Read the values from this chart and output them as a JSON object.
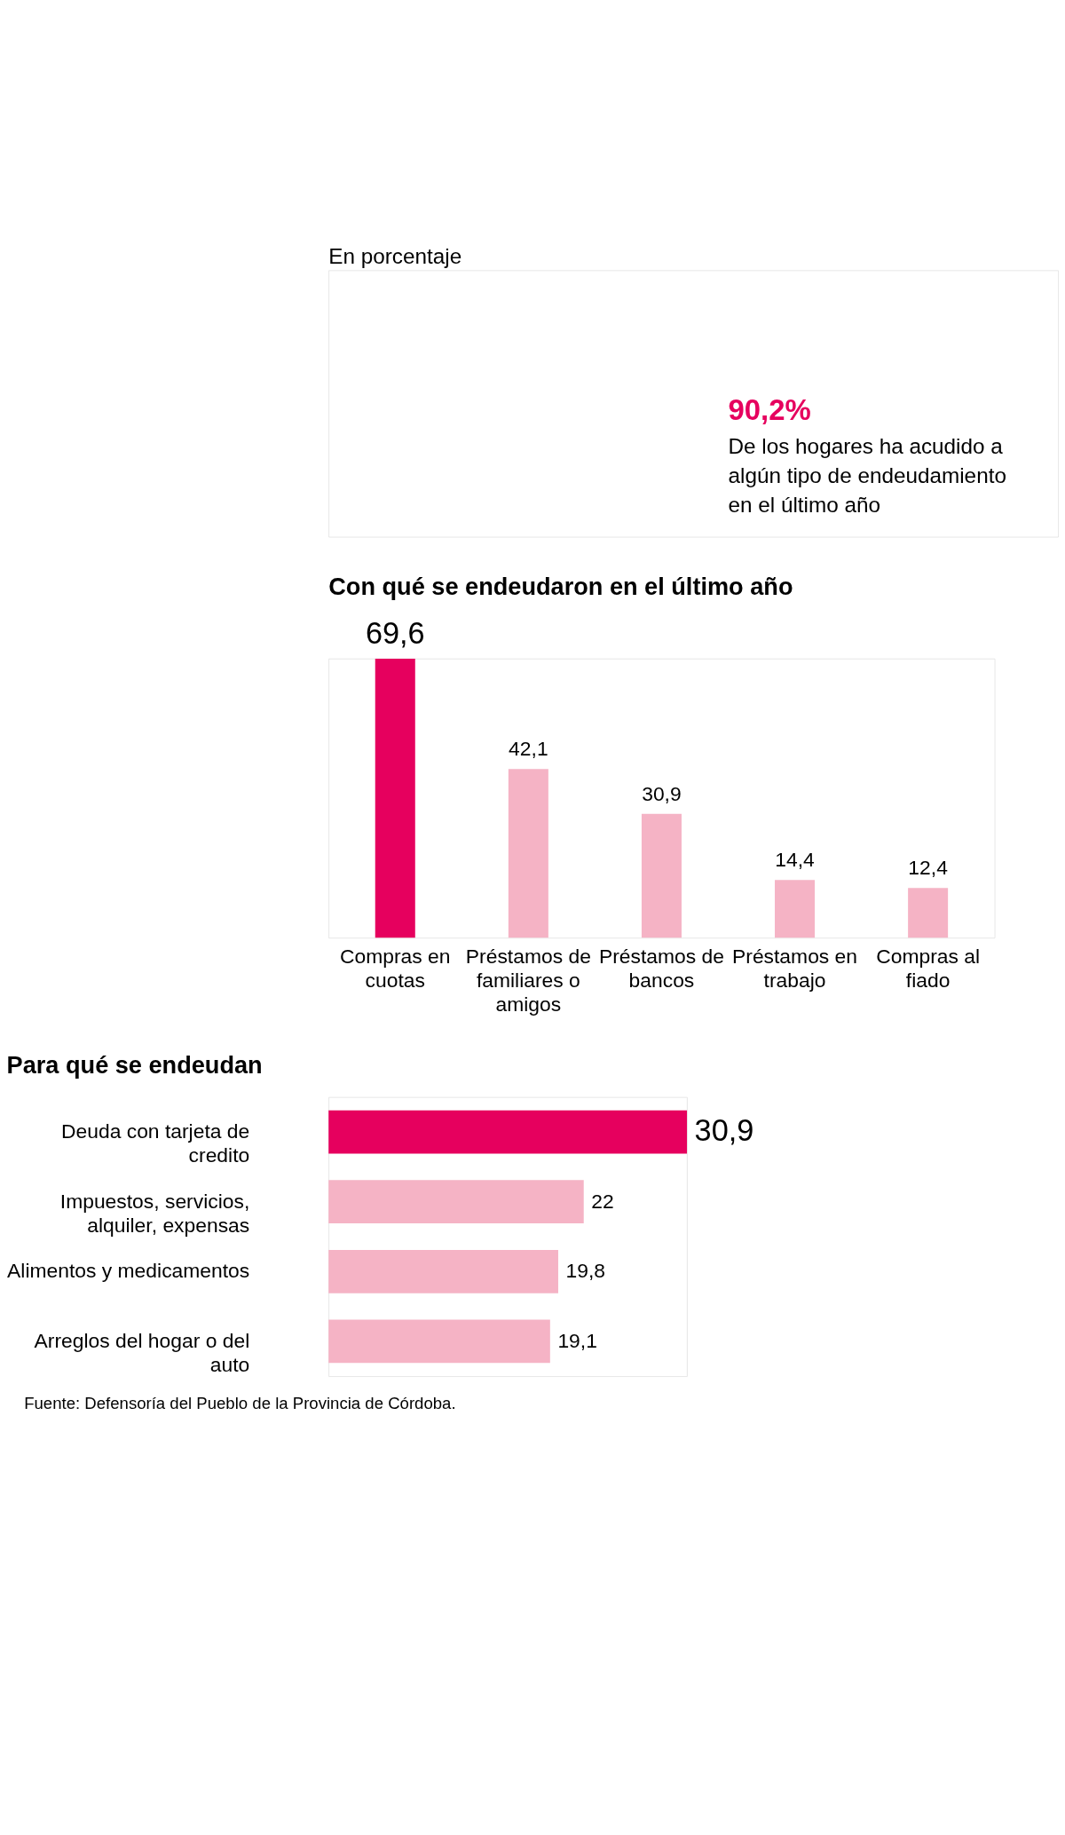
{
  "chart_data": [
    {
      "type": "other",
      "title": "En porcentaje",
      "annotations": [
        "90,2%",
        "De los hogares ha acudido a algún tipo de endeudamiento en el último año"
      ]
    },
    {
      "type": "bar",
      "title": "Con qué se endeudaron en el último año",
      "categories": [
        "Compras en cuotas",
        "Préstamos de familiares o amigos",
        "Préstamos de bancos",
        "Préstamos en trabajo",
        "Compras al fiado"
      ],
      "values": [
        69.6,
        42.1,
        30.9,
        14.4,
        12.4
      ],
      "value_labels": [
        "69,6",
        "42,1",
        "30,9",
        "14,4",
        "12,4"
      ],
      "colors": [
        "#e6005e",
        "#f5b3c5",
        "#f5b3c5",
        "#f5b3c5",
        "#f5b3c5"
      ]
    },
    {
      "type": "bar",
      "orientation": "horizontal",
      "title": "Para qué se endeudan",
      "categories": [
        "Deuda con tarjeta de credito",
        "Impuestos, servicios, alquiler, expensas",
        "Alimentos y medicamentos",
        "Arreglos del hogar o del auto"
      ],
      "values": [
        30.9,
        22,
        19.8,
        19.1
      ],
      "value_labels": [
        "30,9",
        "22",
        "19,8",
        "19,1"
      ],
      "colors": [
        "#e6005e",
        "#f5b3c5",
        "#f5b3c5",
        "#f5b3c5"
      ],
      "annotations": [
        "Fuente: Defensoría del Pueblo de la Provincia de Córdoba."
      ]
    }
  ]
}
